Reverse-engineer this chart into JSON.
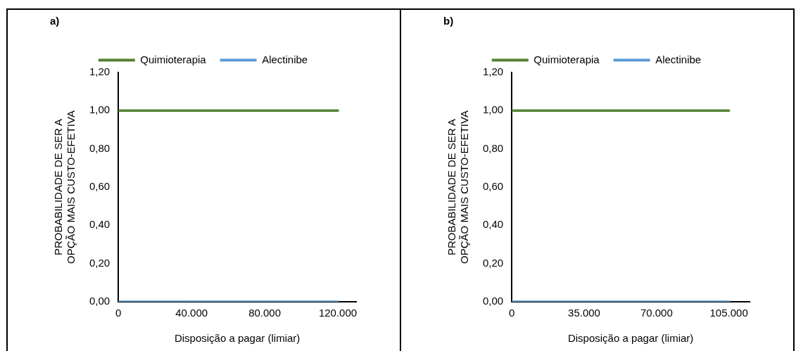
{
  "chart_data": [
    {
      "type": "line",
      "title": "a)",
      "xlabel": "Disposição a pagar (limiar)",
      "ylabel": "PROBABILIDADE DE SER A OPÇÃO MAIS CUSTO-EFETIVA",
      "x": [
        0,
        120000
      ],
      "series": [
        {
          "name": "Quimioterapia",
          "color": "#548235",
          "values": [
            1,
            1
          ]
        },
        {
          "name": "Alectinibe",
          "color": "#5b9bd5",
          "values": [
            0,
            0
          ]
        }
      ],
      "xlim": [
        0,
        130000
      ],
      "xticks": [
        0,
        {
          "value": 40000,
          "label": "40.000"
        },
        {
          "value": 80000,
          "label": "80.000"
        },
        {
          "value": 120000,
          "label": "120.000"
        }
      ],
      "ylim": [
        0,
        1.2
      ],
      "yticks": [
        {
          "value": 0,
          "label": "0,00"
        },
        {
          "value": 0.2,
          "label": "0,20"
        },
        {
          "value": 0.4,
          "label": "0,40"
        },
        {
          "value": 0.6,
          "label": "0,60"
        },
        {
          "value": 0.8,
          "label": "0,80"
        },
        {
          "value": 1,
          "label": "1,00"
        },
        {
          "value": 1.2,
          "label": "1,20"
        }
      ],
      "grid": false,
      "legend": "top",
      "marker": "none",
      "line_style": "solid"
    },
    {
      "type": "line",
      "title": "b)",
      "xlabel": "Disposição a pagar (limiar)",
      "ylabel": "PROBABILIDADE DE SER A OPÇÃO MAIS CUSTO-EFETIVA",
      "x": [
        0,
        105000
      ],
      "series": [
        {
          "name": "Quimioterapia",
          "color": "#548235",
          "values": [
            1,
            1
          ]
        },
        {
          "name": "Alectinibe",
          "color": "#5b9bd5",
          "values": [
            0,
            0
          ]
        }
      ],
      "xlim": [
        0,
        115000
      ],
      "xticks": [
        0,
        {
          "value": 35000,
          "label": "35.000"
        },
        {
          "value": 70000,
          "label": "70.000"
        },
        {
          "value": 105000,
          "label": "105.000"
        }
      ],
      "ylim": [
        0,
        1.2
      ],
      "yticks": [
        {
          "value": 0,
          "label": "0,00"
        },
        {
          "value": 0.2,
          "label": "0,20"
        },
        {
          "value": 0.4,
          "label": "0,40"
        },
        {
          "value": 0.6,
          "label": "0,60"
        },
        {
          "value": 0.8,
          "label": "0,80"
        },
        {
          "value": 1,
          "label": "1,00"
        },
        {
          "value": 1.2,
          "label": "1,20"
        }
      ],
      "grid": false,
      "legend": "top",
      "marker": "none",
      "line_style": "solid"
    }
  ]
}
